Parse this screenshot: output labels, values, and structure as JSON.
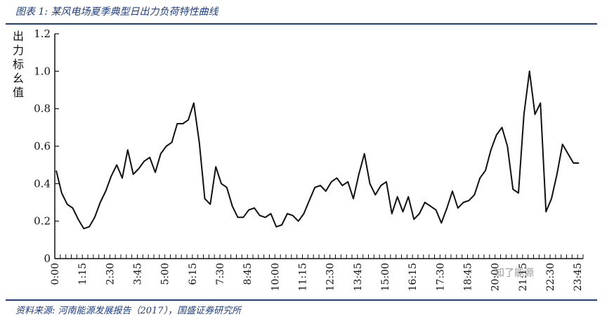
{
  "caption": "图表 1: 某风电场夏季典型日出力负荷特性曲线",
  "source": "资料来源: 河南能源发展报告（2017），国盛证券研究所",
  "watermark": "知了能源",
  "chart_data": {
    "type": "line",
    "ylabel": "出力标幺值",
    "xlabel": "",
    "ylim": [
      0,
      1.2
    ],
    "y_ticks": [
      "0",
      "0.2",
      "0.4",
      "0.6",
      "0.8",
      "1.0",
      "1.2"
    ],
    "x_tick_labels": [
      "0:00",
      "1:15",
      "2:30",
      "3:45",
      "5:00",
      "6:15",
      "7:30",
      "8:45",
      "10:00",
      "11:15",
      "12:30",
      "13:45",
      "15:00",
      "16:15",
      "17:30",
      "18:45",
      "20:00",
      "21:15",
      "22:30",
      "23:45"
    ],
    "interval_minutes": 15,
    "line_color": "#111111",
    "grid": false,
    "values": [
      0.47,
      0.35,
      0.29,
      0.27,
      0.21,
      0.16,
      0.17,
      0.22,
      0.3,
      0.36,
      0.44,
      0.5,
      0.43,
      0.58,
      0.45,
      0.48,
      0.52,
      0.54,
      0.46,
      0.56,
      0.6,
      0.62,
      0.72,
      0.72,
      0.74,
      0.83,
      0.62,
      0.32,
      0.29,
      0.49,
      0.4,
      0.38,
      0.28,
      0.22,
      0.22,
      0.26,
      0.27,
      0.23,
      0.22,
      0.24,
      0.17,
      0.18,
      0.24,
      0.23,
      0.2,
      0.24,
      0.31,
      0.38,
      0.39,
      0.36,
      0.41,
      0.43,
      0.39,
      0.41,
      0.32,
      0.45,
      0.56,
      0.4,
      0.34,
      0.39,
      0.41,
      0.24,
      0.33,
      0.25,
      0.33,
      0.21,
      0.24,
      0.3,
      0.28,
      0.26,
      0.19,
      0.27,
      0.36,
      0.27,
      0.3,
      0.31,
      0.34,
      0.43,
      0.47,
      0.58,
      0.66,
      0.7,
      0.6,
      0.37,
      0.35,
      0.77,
      1.0,
      0.77,
      0.83,
      0.25,
      0.32,
      0.45,
      0.61,
      0.56,
      0.51,
      0.51
    ]
  }
}
